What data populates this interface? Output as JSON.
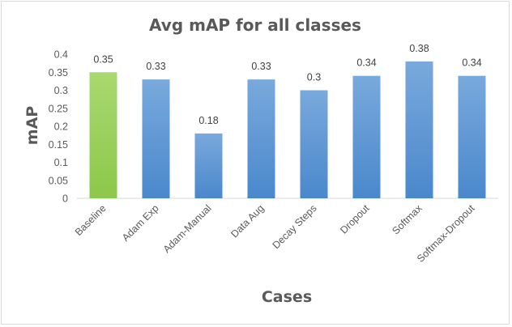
{
  "chart_data": {
    "type": "bar",
    "title": "Avg mAP for all classes",
    "xlabel": "Cases",
    "ylabel": "mAP",
    "categories": [
      "Baseline",
      "Adam Exp",
      "Adam-Manual",
      "Data Aug",
      "Decay Steps",
      "Dropout",
      "Softmax",
      "Softmax-Dropout"
    ],
    "values": [
      0.35,
      0.33,
      0.18,
      0.33,
      0.3,
      0.34,
      0.38,
      0.34
    ],
    "data_labels": [
      "0.35",
      "0.33",
      "0.18",
      "0.33",
      "0.3",
      "0.34",
      "0.38",
      "0.34"
    ],
    "ylim": [
      0,
      0.4
    ],
    "yticks": [
      0,
      0.05,
      0.1,
      0.15,
      0.2,
      0.25,
      0.3,
      0.35,
      0.4
    ],
    "ytick_labels": [
      "0",
      "0.05",
      "0.1",
      "0.15",
      "0.2",
      "0.25",
      "0.3",
      "0.35",
      "0.4"
    ],
    "grid": false,
    "legend": "none",
    "colors": {
      "highlight_top": "#a9d870",
      "highlight_bottom": "#8cc84b",
      "bar_top": "#79a9dc",
      "bar_bottom": "#4a88cc",
      "highlight_category": "Baseline"
    }
  }
}
